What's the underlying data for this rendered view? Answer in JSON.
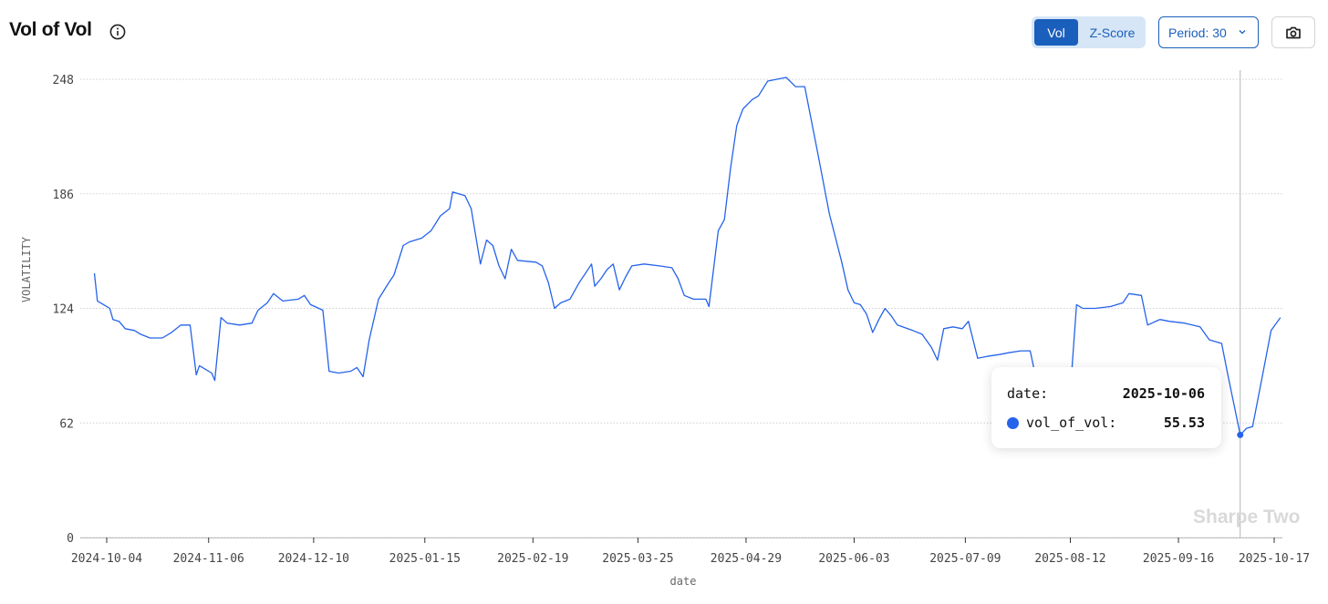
{
  "header": {
    "title": "Vol of Vol",
    "info_icon": "info-circle-icon",
    "toggle": {
      "options": [
        "Vol",
        "Z-Score"
      ],
      "selected": "Vol"
    },
    "period_label": "Period: 30",
    "camera_icon": "camera-icon"
  },
  "colors": {
    "line": "#2563eb",
    "accent": "#1b5fbd",
    "toggle_bg": "#d6e6f7",
    "grid": "#cfcfcf"
  },
  "watermark": "Sharpe Two",
  "tooltip": {
    "date_key": "date:",
    "date_value": "2025-10-06",
    "series_key": "vol_of_vol:",
    "series_value": "55.53"
  },
  "chart_data": {
    "type": "line",
    "xlabel": "date",
    "ylabel": "VOLATILITY",
    "ylim": [
      0,
      248
    ],
    "y_ticks": [
      "0",
      "62",
      "124",
      "186",
      "248"
    ],
    "x_ticks": [
      "2024-10-04",
      "2024-11-06",
      "2024-12-10",
      "2025-01-15",
      "2025-02-19",
      "2025-03-25",
      "2025-04-29",
      "2025-06-03",
      "2025-07-09",
      "2025-08-12",
      "2025-09-16",
      "2025-10-17"
    ],
    "grid": "horizontal dotted",
    "hover": {
      "date": "2025-10-06",
      "value": 55.53
    },
    "series": [
      {
        "values": [
          [
            "2024-09-30",
            143
          ],
          [
            "2024-10-01",
            128
          ],
          [
            "2024-10-03",
            126
          ],
          [
            "2024-10-05",
            124
          ],
          [
            "2024-10-06",
            118
          ],
          [
            "2024-10-08",
            117
          ],
          [
            "2024-10-10",
            113
          ],
          [
            "2024-10-13",
            112
          ],
          [
            "2024-10-15",
            110
          ],
          [
            "2024-10-18",
            108
          ],
          [
            "2024-10-22",
            108
          ],
          [
            "2024-10-25",
            111
          ],
          [
            "2024-10-28",
            115
          ],
          [
            "2024-10-31",
            115
          ],
          [
            "2024-11-02",
            88
          ],
          [
            "2024-11-03",
            93
          ],
          [
            "2024-11-05",
            91
          ],
          [
            "2024-11-07",
            89
          ],
          [
            "2024-11-08",
            85
          ],
          [
            "2024-11-10",
            119
          ],
          [
            "2024-11-12",
            116
          ],
          [
            "2024-11-16",
            115
          ],
          [
            "2024-11-20",
            116
          ],
          [
            "2024-11-22",
            123
          ],
          [
            "2024-11-25",
            127
          ],
          [
            "2024-11-27",
            132
          ],
          [
            "2024-11-30",
            128
          ],
          [
            "2024-12-05",
            129
          ],
          [
            "2024-12-07",
            131
          ],
          [
            "2024-12-09",
            126
          ],
          [
            "2024-12-13",
            123
          ],
          [
            "2024-12-15",
            90
          ],
          [
            "2024-12-18",
            89
          ],
          [
            "2024-12-22",
            90
          ],
          [
            "2024-12-24",
            92
          ],
          [
            "2024-12-26",
            87
          ],
          [
            "2024-12-28",
            107
          ],
          [
            "2024-12-31",
            129
          ],
          [
            "2025-01-03",
            137
          ],
          [
            "2025-01-05",
            142
          ],
          [
            "2025-01-08",
            158
          ],
          [
            "2025-01-10",
            160
          ],
          [
            "2025-01-14",
            162
          ],
          [
            "2025-01-17",
            166
          ],
          [
            "2025-01-20",
            174
          ],
          [
            "2025-01-23",
            178
          ],
          [
            "2025-01-24",
            187
          ],
          [
            "2025-01-28",
            185
          ],
          [
            "2025-01-30",
            178
          ],
          [
            "2025-02-02",
            148
          ],
          [
            "2025-02-04",
            161
          ],
          [
            "2025-02-06",
            158
          ],
          [
            "2025-02-08",
            147
          ],
          [
            "2025-02-10",
            140
          ],
          [
            "2025-02-12",
            156
          ],
          [
            "2025-02-14",
            150
          ],
          [
            "2025-02-20",
            149
          ],
          [
            "2025-02-22",
            147
          ],
          [
            "2025-02-24",
            138
          ],
          [
            "2025-02-26",
            124
          ],
          [
            "2025-02-28",
            127
          ],
          [
            "2025-03-03",
            129
          ],
          [
            "2025-03-06",
            138
          ],
          [
            "2025-03-08",
            143
          ],
          [
            "2025-03-10",
            148
          ],
          [
            "2025-03-11",
            136
          ],
          [
            "2025-03-13",
            140
          ],
          [
            "2025-03-15",
            145
          ],
          [
            "2025-03-17",
            148
          ],
          [
            "2025-03-19",
            134
          ],
          [
            "2025-03-21",
            141
          ],
          [
            "2025-03-23",
            147
          ],
          [
            "2025-03-27",
            148
          ],
          [
            "2025-04-01",
            147
          ],
          [
            "2025-04-05",
            146
          ],
          [
            "2025-04-07",
            140
          ],
          [
            "2025-04-09",
            131
          ],
          [
            "2025-04-12",
            129
          ],
          [
            "2025-04-16",
            129
          ],
          [
            "2025-04-17",
            125
          ],
          [
            "2025-04-20",
            166
          ],
          [
            "2025-04-22",
            172
          ],
          [
            "2025-04-24",
            200
          ],
          [
            "2025-04-26",
            223
          ],
          [
            "2025-04-28",
            232
          ],
          [
            "2025-05-01",
            237
          ],
          [
            "2025-05-03",
            239
          ],
          [
            "2025-05-06",
            247
          ],
          [
            "2025-05-12",
            249
          ],
          [
            "2025-05-15",
            244
          ],
          [
            "2025-05-18",
            244
          ],
          [
            "2025-05-22",
            210
          ],
          [
            "2025-05-26",
            175
          ],
          [
            "2025-05-30",
            149
          ],
          [
            "2025-06-01",
            134
          ],
          [
            "2025-06-03",
            127
          ],
          [
            "2025-06-05",
            126
          ],
          [
            "2025-06-07",
            121
          ],
          [
            "2025-06-09",
            111
          ],
          [
            "2025-06-11",
            118
          ],
          [
            "2025-06-13",
            124
          ],
          [
            "2025-06-15",
            120
          ],
          [
            "2025-06-17",
            115
          ],
          [
            "2025-06-22",
            112
          ],
          [
            "2025-06-25",
            110
          ],
          [
            "2025-06-28",
            103
          ],
          [
            "2025-06-30",
            96
          ],
          [
            "2025-07-02",
            113
          ],
          [
            "2025-07-05",
            114
          ],
          [
            "2025-07-08",
            113
          ],
          [
            "2025-07-10",
            117
          ],
          [
            "2025-07-13",
            97
          ],
          [
            "2025-07-16",
            98
          ],
          [
            "2025-07-20",
            99
          ],
          [
            "2025-07-23",
            100
          ],
          [
            "2025-07-27",
            101
          ],
          [
            "2025-07-30",
            101
          ],
          [
            "2025-08-01",
            85
          ],
          [
            "2025-08-05",
            80
          ],
          [
            "2025-08-08",
            78
          ],
          [
            "2025-08-12",
            79
          ],
          [
            "2025-08-14",
            126
          ],
          [
            "2025-08-16",
            124
          ],
          [
            "2025-08-20",
            124
          ],
          [
            "2025-08-25",
            125
          ],
          [
            "2025-08-29",
            127
          ],
          [
            "2025-08-31",
            132
          ],
          [
            "2025-09-04",
            131
          ],
          [
            "2025-09-06",
            115
          ],
          [
            "2025-09-10",
            118
          ],
          [
            "2025-09-13",
            117
          ],
          [
            "2025-09-18",
            116
          ],
          [
            "2025-09-23",
            114
          ],
          [
            "2025-09-26",
            107
          ],
          [
            "2025-09-30",
            105
          ],
          [
            "2025-10-02",
            88
          ],
          [
            "2025-10-06",
            55.53
          ],
          [
            "2025-10-08",
            59
          ],
          [
            "2025-10-10",
            60
          ],
          [
            "2025-10-13",
            86
          ],
          [
            "2025-10-16",
            112
          ],
          [
            "2025-10-19",
            119
          ]
        ]
      }
    ]
  }
}
